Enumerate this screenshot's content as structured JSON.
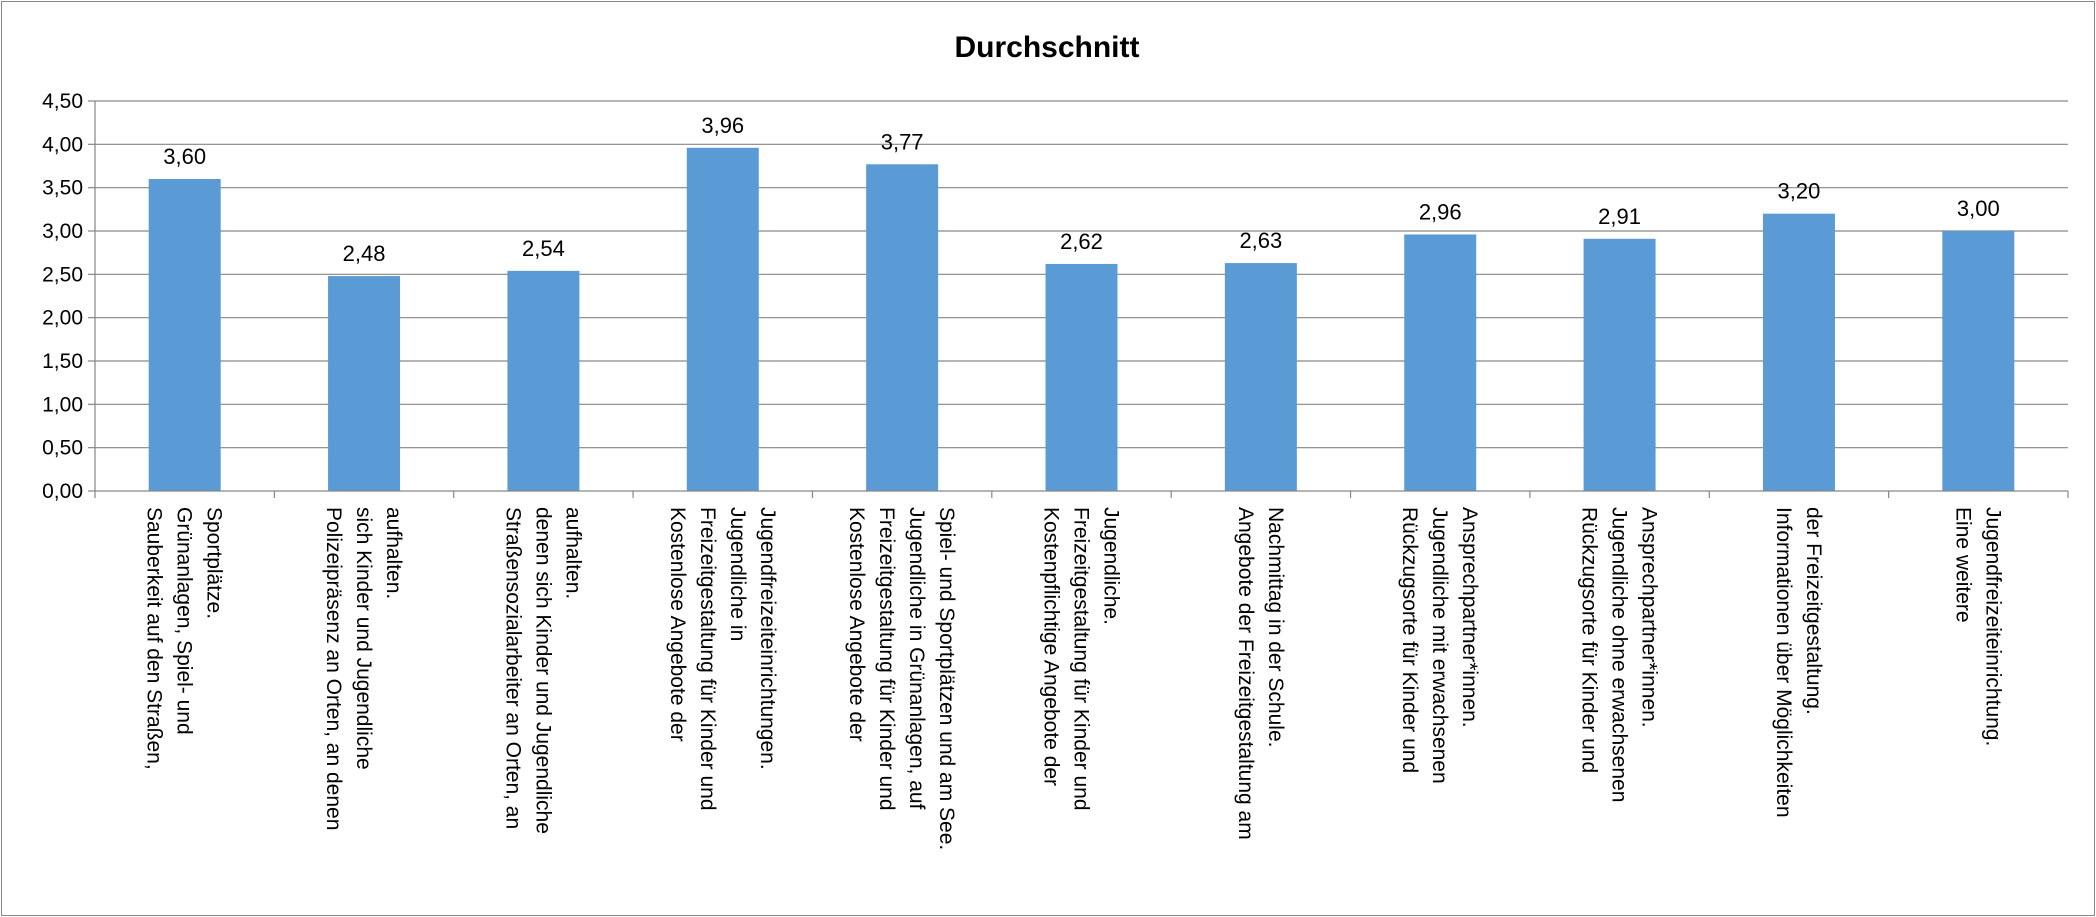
{
  "colors": {
    "bar": "#5B9BD5",
    "grid": "#868686",
    "axis": "#868686",
    "text": "#000000"
  },
  "chart_data": {
    "type": "bar",
    "title": "Durchschnitt",
    "xlabel": "",
    "ylabel": "",
    "ylim": [
      0,
      4.5
    ],
    "yticks": [
      "0,00",
      "0,50",
      "1,00",
      "1,50",
      "2,00",
      "2,50",
      "3,00",
      "3,50",
      "4,00",
      "4,50"
    ],
    "grid": true,
    "legend": "none",
    "categories": [
      "Sauberkeit auf den Straßen, Grünanlagen, Spiel- und Sportplätze.",
      "Polizeipräsenz an Orten, an denen sich Kinder und Jugendliche aufhalten.",
      "Straßensozialarbeiter an Orten, an denen sich Kinder und Jugendliche aufhalten.",
      "Kostenlose Angebote der Freizeitgestaltung für Kinder und Jugendliche in Jugendfreizeiteinrichtungen.",
      "Kostenlose Angebote der Freizeitgestaltung für Kinder und Jugendliche in Grünanlagen, auf Spiel- und Sportplätzen und am See.",
      "Kostenpflichtige Angebote der Freizeitgestaltung für Kinder und Jugendliche.",
      "Angebote der Freizeitgestaltung am Nachmittag in der Schule.",
      "Rückzugsorte für Kinder und Jugendliche mit erwachsenen Ansprechpartner*innen.",
      "Rückzugsorte für Kinder und Jugendliche ohne erwachsenen Ansprechpartner*innen.",
      "Informationen über Möglichkeiten der Freizeitgestaltung.",
      "Eine weitere Jugendfreizeiteinrichtung."
    ],
    "category_lines": [
      [
        "Sauberkeit auf den Straßen,",
        "Grünanlagen, Spiel- und",
        "Sportplätze."
      ],
      [
        "Polizeipräsenz an Orten, an denen",
        "sich Kinder und Jugendliche",
        "aufhalten."
      ],
      [
        "Straßensozialarbeiter an Orten, an",
        "denen sich Kinder und Jugendliche",
        "aufhalten."
      ],
      [
        "Kostenlose Angebote der",
        "Freizeitgestaltung für Kinder und",
        "Jugendliche in",
        "Jugendfreizeiteinrichtungen."
      ],
      [
        "Kostenlose Angebote der",
        "Freizeitgestaltung für Kinder und",
        "Jugendliche in Grünanlagen, auf",
        "Spiel- und Sportplätzen und am See."
      ],
      [
        "Kostenpflichtige Angebote der",
        "Freizeitgestaltung für Kinder und",
        "Jugendliche."
      ],
      [
        "Angebote der Freizeitgestaltung am",
        "Nachmittag in der Schule."
      ],
      [
        "Rückzugsorte für Kinder und",
        "Jugendliche mit erwachsenen",
        "Ansprechpartner*innen."
      ],
      [
        "Rückzugsorte für Kinder und",
        "Jugendliche ohne erwachsenen",
        "Ansprechpartner*innen."
      ],
      [
        "Informationen über Möglichkeiten",
        "der Freizeitgestaltung."
      ],
      [
        "Eine weitere",
        "Jugendfreizeiteinrichtung."
      ]
    ],
    "values": [
      3.6,
      2.48,
      2.54,
      3.96,
      3.77,
      2.62,
      2.63,
      2.96,
      2.91,
      3.2,
      3.0
    ],
    "value_labels": [
      "3,60",
      "2,48",
      "2,54",
      "3,96",
      "3,77",
      "2,62",
      "2,63",
      "2,96",
      "2,91",
      "3,20",
      "3,00"
    ]
  }
}
